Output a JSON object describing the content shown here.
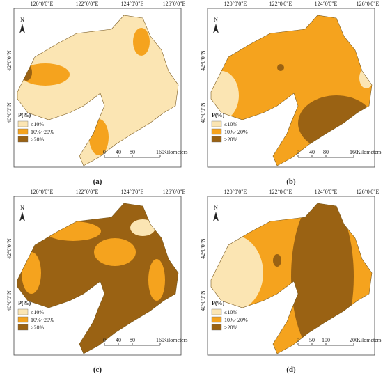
{
  "panels": [
    {
      "label": "(a)",
      "lon_labels": [
        "120°0'0\"E",
        "122°0'0\"E",
        "124°0'0\"E",
        "126°0'0\"E"
      ],
      "lat_labels": [
        "42°0'0\"N",
        "40°0'0\"N"
      ],
      "north": "N",
      "legend": {
        "title": "P(%)",
        "items": [
          "≤10%",
          "10%~20%",
          ">20%"
        ]
      },
      "scale": {
        "ticks": [
          0,
          40,
          80,
          160
        ],
        "unit": "Kilometers"
      }
    },
    {
      "label": "(b)",
      "lon_labels": [
        "120°0'0\"E",
        "122°0'0\"E",
        "124°0'0\"E",
        "126°0'0\"E"
      ],
      "lat_labels": [
        "42°0'0\"N",
        "40°0'0\"N"
      ],
      "north": "N",
      "legend": {
        "title": "P(%)",
        "items": [
          "≤10%",
          "10%~20%",
          ">20%"
        ]
      },
      "scale": {
        "ticks": [
          0,
          40,
          80,
          160
        ],
        "unit": "Kilometers"
      }
    },
    {
      "label": "(c)",
      "lon_labels": [
        "120°0'0\"E",
        "122°0'0\"E",
        "124°0'0\"E",
        "126°0'0\"E"
      ],
      "lat_labels": [
        "42°0'0\"N",
        "40°0'0\"N"
      ],
      "north": "N",
      "legend": {
        "title": "P(%)",
        "items": [
          "≤10%",
          "10%~20%",
          ">20%"
        ]
      },
      "scale": {
        "ticks": [
          0,
          40,
          80,
          160
        ],
        "unit": "Kilometers"
      }
    },
    {
      "label": "(d)",
      "lon_labels": [
        "120°0'0\"E",
        "122°0'0\"E",
        "124°0'0\"E",
        "126°0'0\"E"
      ],
      "lat_labels": [
        "42°0'0\"N",
        "40°0'0\"N"
      ],
      "north": "N",
      "legend": {
        "title": "P(%)",
        "items": [
          "≤10%",
          "10%~20%",
          ">20%"
        ]
      },
      "scale": {
        "ticks": [
          0,
          50,
          100,
          200
        ],
        "unit": "Kilometers"
      }
    }
  ]
}
